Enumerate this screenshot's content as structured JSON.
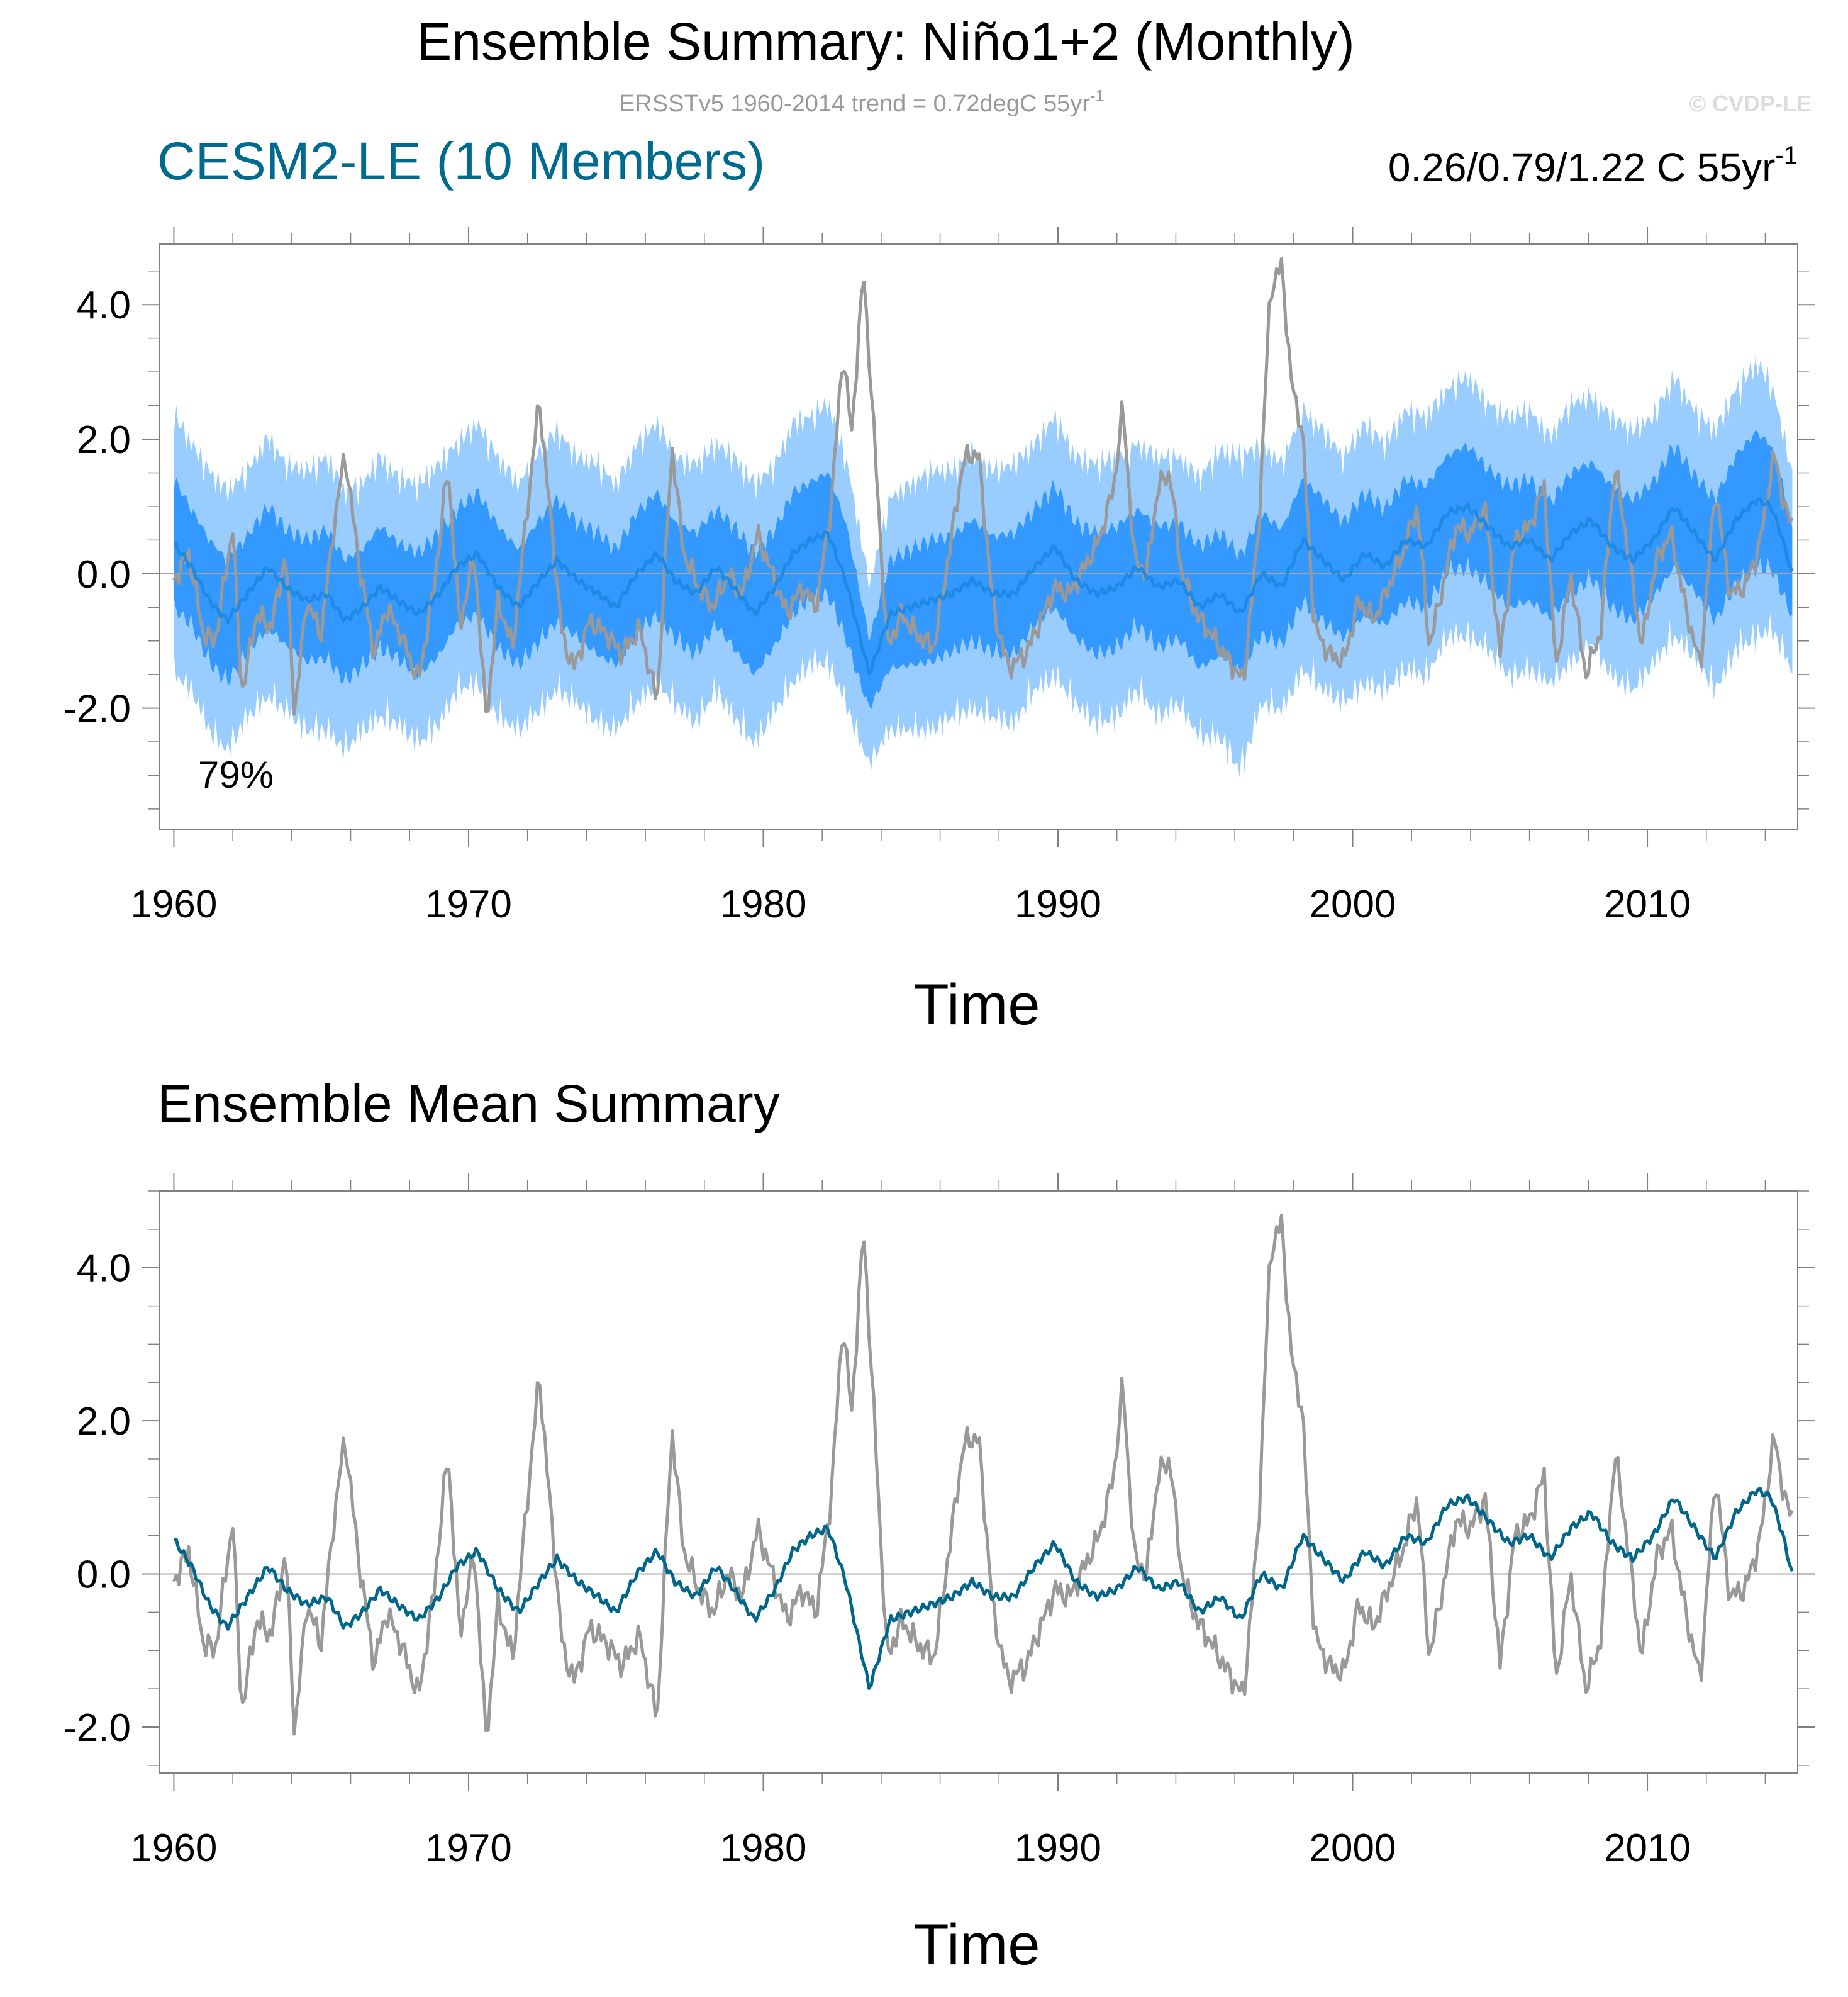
{
  "header": {
    "title": "Ensemble Summary: Niño1+2 (Monthly)",
    "subtitle": "ERSSTv5 1960-2014 trend = 0.72degC 55yr",
    "subtitle_sup": "-1",
    "watermark": "© CVDP-LE"
  },
  "colors": {
    "obs": "#999999",
    "ensemble_mean_top": "#1f8ae6",
    "inner_band": "#3399ff",
    "outer_band": "#99ccff",
    "ensemble_mean_bottom": "#00668c",
    "title_cesm": "#006b8f",
    "frame": "#808080",
    "zero_line": "#a6a6a6"
  },
  "chart_data": [
    {
      "type": "line",
      "panel": "top",
      "title_left": "CESM2-LE (10 Members)",
      "title_right": "0.26/0.79/1.22 C 55yr",
      "title_right_sup": "-1",
      "annotation": "79%",
      "xlabel": "Time",
      "ylabel": "",
      "xlim": [
        1959.5,
        2015.1
      ],
      "ylim": [
        -3.8,
        4.9
      ],
      "yticks": [
        4.0,
        2.0,
        0.0,
        -2.0
      ],
      "ytick_labels": [
        "4.0",
        "2.0",
        "0.0",
        "-2.0"
      ],
      "xticks": [
        1960,
        1970,
        1980,
        1990,
        2000,
        2010
      ],
      "xtick_labels": [
        "1960",
        "1970",
        "1980",
        "1990",
        "2000",
        "2010"
      ],
      "series": [
        {
          "name": "ERSSTv5 observed",
          "x": [
            1960.0,
            1960.5,
            1961.0,
            1961.4,
            1962.0,
            1962.3,
            1962.8,
            1963.3,
            1963.8,
            1964.1,
            1964.5,
            1965.0,
            1965.4,
            1965.8,
            1966.3,
            1966.8,
            1967.2,
            1967.7,
            1968.3,
            1968.8,
            1969.3,
            1969.7,
            1970.2,
            1970.6,
            1971.0,
            1971.5,
            1972.0,
            1972.4,
            1972.7,
            1973.2,
            1973.6,
            1974.1,
            1974.7,
            1975.2,
            1975.8,
            1976.4,
            1976.9,
            1977.3,
            1977.8,
            1978.3,
            1978.8,
            1979.3,
            1979.8,
            1980.3,
            1980.8,
            1981.3,
            1981.8,
            1982.3,
            1982.7,
            1983.0,
            1983.4,
            1983.8,
            1984.2,
            1984.7,
            1985.2,
            1985.8,
            1986.3,
            1986.8,
            1987.3,
            1987.8,
            1988.3,
            1988.9,
            1989.4,
            1989.9,
            1990.4,
            1990.9,
            1991.4,
            1991.9,
            1992.2,
            1992.6,
            1993.0,
            1993.4,
            1993.8,
            1994.2,
            1994.7,
            1995.2,
            1995.8,
            1996.3,
            1996.8,
            1997.2,
            1997.6,
            1997.9,
            1998.3,
            1998.7,
            1999.2,
            1999.7,
            2000.2,
            2000.7,
            2001.2,
            2001.7,
            2002.2,
            2002.6,
            2003.0,
            2003.5,
            2004.0,
            2004.5,
            2005.0,
            2005.5,
            2006.0,
            2006.5,
            2006.9,
            2007.4,
            2007.9,
            2008.4,
            2008.9,
            2009.3,
            2009.8,
            2010.3,
            2010.8,
            2011.3,
            2011.8,
            2012.3,
            2012.8,
            2013.3,
            2013.8,
            2014.3,
            2014.7,
            2015.0
          ],
          "values": [
            -0.1,
            0.3,
            -0.9,
            -1.0,
            0.7,
            -1.8,
            -0.6,
            -0.8,
            0.3,
            -2.1,
            -0.4,
            -0.9,
            0.6,
            1.8,
            0.1,
            -1.2,
            -0.5,
            -0.9,
            -1.6,
            -0.3,
            1.6,
            -0.8,
            0.3,
            -2.2,
            -0.4,
            -1.1,
            1.0,
            2.6,
            1.2,
            -1.0,
            -1.4,
            -0.7,
            -0.9,
            -1.2,
            -0.8,
            -1.9,
            1.9,
            0.3,
            -0.2,
            -0.5,
            0.0,
            -0.3,
            0.6,
            0.0,
            -0.6,
            -0.2,
            -0.5,
            1.0,
            3.3,
            2.1,
            4.5,
            1.8,
            -1.1,
            -0.6,
            -0.9,
            -1.1,
            0.3,
            1.7,
            1.8,
            -0.5,
            -1.4,
            -1.2,
            -0.7,
            -0.2,
            -0.3,
            0.1,
            0.5,
            1.3,
            2.5,
            0.2,
            0.0,
            1.3,
            1.5,
            0.0,
            -0.6,
            -0.9,
            -1.3,
            -1.6,
            0.6,
            4.2,
            4.6,
            2.9,
            2.1,
            -0.8,
            -1.2,
            -1.3,
            -0.4,
            -0.7,
            -0.2,
            0.3,
            1.0,
            -1.1,
            -0.3,
            0.7,
            0.6,
            1.0,
            -1.2,
            0.5,
            0.7,
            1.3,
            -1.4,
            0.0,
            -1.5,
            -0.9,
            1.6,
            0.5,
            -1.1,
            0.2,
            0.6,
            -0.5,
            -1.4,
            1.3,
            -0.3,
            -0.2,
            0.4,
            1.8,
            0.9,
            0.7
          ],
          "color_key": "obs"
        },
        {
          "name": "Ensemble mean",
          "x": [
            1960.0,
            1960.6,
            1961.2,
            1961.8,
            1962.5,
            1963.2,
            1963.8,
            1964.5,
            1965.2,
            1965.8,
            1966.4,
            1967.0,
            1967.6,
            1968.3,
            1969.0,
            1969.6,
            1970.3,
            1971.0,
            1971.7,
            1972.4,
            1973.0,
            1973.7,
            1974.4,
            1975.0,
            1975.7,
            1976.4,
            1977.0,
            1977.7,
            1978.4,
            1979.0,
            1979.7,
            1980.4,
            1981.0,
            1981.6,
            1982.2,
            1982.8,
            1983.2,
            1983.6,
            1984.3,
            1985.0,
            1985.7,
            1986.4,
            1987.1,
            1987.8,
            1988.5,
            1989.2,
            1989.9,
            1990.6,
            1991.3,
            1992.0,
            1992.7,
            1993.4,
            1994.1,
            1994.8,
            1995.5,
            1996.2,
            1996.9,
            1997.6,
            1998.3,
            1999.0,
            1999.7,
            2000.4,
            2001.1,
            2001.8,
            2002.5,
            2003.2,
            2003.9,
            2004.6,
            2005.3,
            2006.0,
            2006.7,
            2007.4,
            2008.1,
            2008.8,
            2009.5,
            2010.2,
            2010.9,
            2011.6,
            2012.3,
            2013.0,
            2013.7,
            2014.2,
            2014.6,
            2015.0
          ],
          "values": [
            0.45,
            0.1,
            -0.4,
            -0.7,
            -0.3,
            0.1,
            -0.2,
            -0.4,
            -0.3,
            -0.7,
            -0.5,
            -0.2,
            -0.4,
            -0.6,
            -0.3,
            0.1,
            0.3,
            -0.2,
            -0.5,
            -0.1,
            0.2,
            -0.1,
            -0.3,
            -0.5,
            0.0,
            0.3,
            -0.1,
            -0.3,
            0.1,
            -0.2,
            -0.6,
            -0.2,
            0.3,
            0.5,
            0.6,
            -0.1,
            -0.8,
            -1.5,
            -0.6,
            -0.5,
            -0.4,
            -0.3,
            -0.1,
            -0.3,
            -0.3,
            0.1,
            0.4,
            -0.1,
            -0.3,
            -0.2,
            0.1,
            -0.2,
            -0.1,
            -0.5,
            -0.3,
            -0.6,
            0.0,
            -0.2,
            0.5,
            0.2,
            -0.1,
            0.3,
            0.1,
            0.5,
            0.4,
            0.9,
            1.0,
            0.7,
            0.4,
            0.5,
            0.2,
            0.6,
            0.8,
            0.4,
            0.2,
            0.5,
            1.0,
            0.6,
            0.2,
            0.8,
            1.1,
            1.0,
            0.5,
            -0.15
          ],
          "color_key": "ensemble_mean_top"
        }
      ],
      "bands": [
        {
          "name": "inner spread",
          "color_key": "inner_band",
          "half_width": [
            0.95,
            0.85,
            0.9,
            0.9,
            0.85,
            0.9,
            0.85,
            0.9,
            0.95,
            0.9,
            0.85,
            0.9,
            0.85,
            0.9,
            0.9,
            0.85,
            0.9,
            0.9,
            0.85,
            0.9,
            0.9,
            0.85,
            0.9,
            0.85,
            0.9,
            0.9,
            0.85,
            0.9,
            0.85,
            0.9,
            0.9,
            0.85,
            0.9,
            0.85,
            0.9,
            0.85,
            0.7,
            0.5,
            0.8,
            0.85,
            0.9,
            0.85,
            0.9,
            0.85,
            0.9,
            0.85,
            0.9,
            0.85,
            0.9,
            0.9,
            0.85,
            0.9,
            0.85,
            0.9,
            0.9,
            0.85,
            0.9,
            0.85,
            0.9,
            0.9,
            0.85,
            0.9,
            0.85,
            0.9,
            0.9,
            0.85,
            0.9,
            0.85,
            0.9,
            0.9,
            0.85,
            0.9,
            0.85,
            0.9,
            0.9,
            0.85,
            0.9,
            0.85,
            0.9,
            0.95,
            1.0,
            0.9,
            0.8,
            0.6
          ]
        },
        {
          "name": "outer spread",
          "color_key": "outer_band",
          "half_width": [
            1.9,
            1.8,
            1.9,
            1.9,
            1.8,
            1.9,
            1.8,
            1.9,
            2.0,
            1.9,
            1.8,
            1.9,
            1.8,
            1.9,
            1.9,
            1.8,
            1.9,
            1.9,
            1.8,
            1.9,
            1.9,
            1.8,
            1.9,
            1.8,
            1.9,
            1.9,
            1.8,
            1.9,
            1.8,
            1.9,
            1.9,
            1.8,
            1.9,
            1.8,
            1.9,
            1.8,
            1.6,
            1.3,
            1.7,
            1.8,
            1.9,
            1.8,
            1.9,
            1.8,
            1.9,
            1.8,
            1.9,
            1.8,
            1.9,
            1.9,
            1.8,
            1.9,
            1.8,
            1.9,
            2.1,
            2.3,
            1.9,
            1.8,
            1.9,
            1.9,
            1.8,
            1.9,
            1.8,
            1.9,
            1.9,
            1.8,
            1.9,
            1.8,
            1.9,
            1.9,
            1.8,
            1.9,
            1.8,
            1.9,
            1.9,
            1.8,
            1.9,
            1.8,
            1.9,
            1.9,
            2.0,
            1.8,
            1.6,
            1.4
          ]
        }
      ]
    },
    {
      "type": "line",
      "panel": "bottom",
      "title_left": "Ensemble Mean Summary",
      "xlabel": "Time",
      "ylabel": "",
      "xlim": [
        1959.5,
        2015.1
      ],
      "ylim": [
        -2.6,
        5.0
      ],
      "yticks": [
        4.0,
        2.0,
        0.0,
        -2.0
      ],
      "ytick_labels": [
        "4.0",
        "2.0",
        "0.0",
        "-2.0"
      ],
      "xticks": [
        1960,
        1970,
        1980,
        1990,
        2000,
        2010
      ],
      "xtick_labels": [
        "1960",
        "1970",
        "1980",
        "1990",
        "2000",
        "2010"
      ],
      "series": [
        {
          "name": "ERSSTv5 observed",
          "use_series_from_top": 0,
          "color_key": "obs"
        },
        {
          "name": "Ensemble mean",
          "use_series_from_top": 1,
          "color_key": "ensemble_mean_bottom"
        }
      ]
    }
  ]
}
